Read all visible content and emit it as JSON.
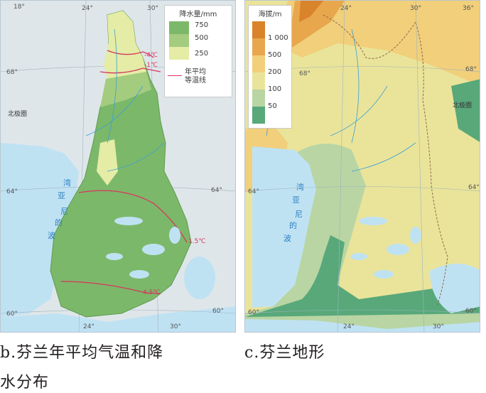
{
  "map_b": {
    "legend": {
      "title": "降水量/mm",
      "levels": [
        {
          "label": "750",
          "color": "#7cb86a"
        },
        {
          "label": "500",
          "color": "#a4cc7e"
        },
        {
          "label": "250",
          "color": "#e4eca6"
        }
      ],
      "isotherm_label": "年平均\n等温线",
      "isotherm_color": "#d8365f"
    },
    "lat_labels": [
      "68°",
      "64°",
      "64°",
      "60°",
      "60°"
    ],
    "lon_labels": [
      "18°",
      "24°",
      "30°",
      "24°",
      "30°"
    ],
    "arctic_circle": "北极圈",
    "isotherms": [
      "-4℃",
      "-1℃",
      "1.5℃",
      "4.5℃"
    ],
    "sea_name": [
      "波",
      "的",
      "尼",
      "亚",
      "湾"
    ],
    "caption_line1": "b.芬兰年平均气温和降",
    "caption_line2": "水分布"
  },
  "map_c": {
    "legend": {
      "title": "海拔/m",
      "levels": [
        {
          "label": "1 000",
          "color": "#d9832a"
        },
        {
          "label": "500",
          "color": "#e8a74c"
        },
        {
          "label": "200",
          "color": "#f1cf7b"
        },
        {
          "label": "100",
          "color": "#eae49a"
        },
        {
          "label": "50",
          "color": "#b9d5a3"
        },
        {
          "label": "",
          "color": "#58a87a"
        }
      ]
    },
    "lat_labels": [
      "68°",
      "68°",
      "64°",
      "64°",
      "60°",
      "60°"
    ],
    "lon_labels": [
      "24°",
      "30°",
      "36°",
      "24°",
      "30°"
    ],
    "arctic_circle": "北极圈",
    "sea_name": [
      "波",
      "的",
      "尼",
      "亚",
      "湾"
    ],
    "caption": "c.芬兰地形"
  }
}
